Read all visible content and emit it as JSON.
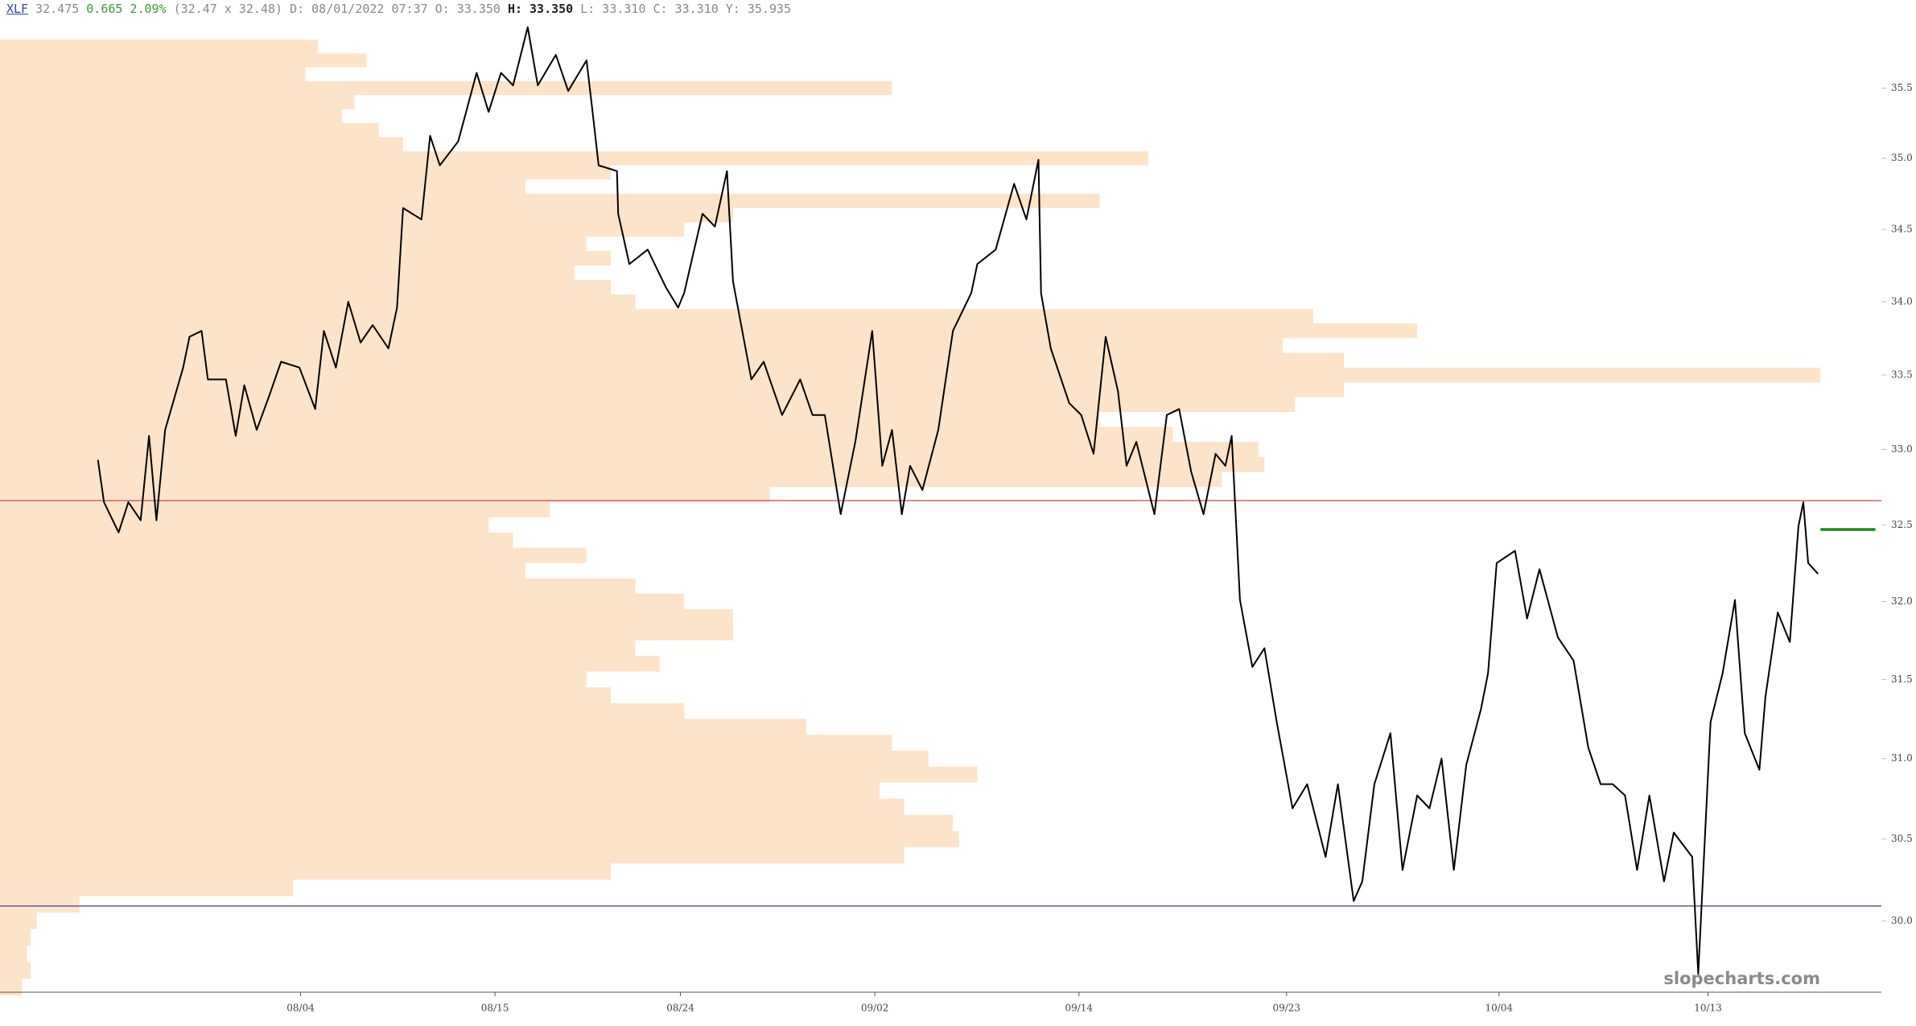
{
  "header": {
    "symbol": "XLF",
    "last": "32.475",
    "change": "0.665",
    "change_pct": "2.09%",
    "bid_ask": "(32.47 x 32.48)",
    "date": "D: 08/01/2022 07:37",
    "open": "O: 33.350",
    "high": "H: 33.350",
    "low": "L: 33.310",
    "close": "C: 33.310",
    "y": "Y: 35.935"
  },
  "watermark": "slopecharts.com",
  "chart_data": {
    "type": "line",
    "log_scale": true,
    "ylim": [
      29.57,
      35.98
    ],
    "yticks": [
      {
        "value": 30,
        "label": "30.0"
      },
      30.5,
      {
        "value": 31,
        "label": "31.0"
      },
      31.5,
      {
        "value": 32,
        "label": "32.0"
      },
      32.5,
      {
        "value": 33,
        "label": "33.0"
      },
      33.5,
      {
        "value": 34,
        "label": "34.0"
      },
      34.5,
      {
        "value": 35,
        "label": "35.0"
      },
      35.5
    ],
    "xlim": [
      -7.47,
      58.06
    ],
    "xticks": [
      {
        "value": 3,
        "label": "08/04"
      },
      {
        "value": 9.77,
        "label": "08/15"
      },
      {
        "value": 16.23,
        "label": "08/24"
      },
      {
        "value": 23.0,
        "label": "09/02"
      },
      {
        "value": 30.11,
        "label": "09/14"
      },
      {
        "value": 37.34,
        "label": "09/23"
      },
      {
        "value": 44.74,
        "label": "10/04"
      },
      {
        "value": 52.02,
        "label": "10/13"
      }
    ],
    "series": [
      {
        "color": "#000000",
        "x": [
          -4.06,
          -3.85,
          -3.34,
          -3.0,
          -2.57,
          -2.28,
          -2.02,
          -1.72,
          -1.09,
          -0.87,
          -0.45,
          -0.23,
          0.4,
          0.74,
          1.04,
          1.47,
          1.89,
          2.32,
          2.96,
          3.51,
          3.81,
          4.23,
          4.66,
          5.09,
          5.51,
          6.06,
          6.36,
          6.57,
          7.21,
          7.51,
          7.85,
          8.49,
          9.13,
          9.55,
          9.98,
          10.4,
          10.91,
          11.26,
          11.89,
          12.32,
          12.96,
          13.17,
          13.38,
          14.02,
          14.06,
          14.45,
          15.09,
          15.72,
          16.15,
          16.36,
          17.0,
          17.43,
          17.85,
          18.06,
          18.7,
          19.13,
          19.77,
          20.4,
          20.83,
          21.26,
          21.81,
          22.32,
          22.91,
          23.26,
          23.6,
          23.94,
          24.23,
          24.66,
          25.21,
          25.72,
          26.36,
          26.57,
          27.21,
          27.85,
          28.28,
          28.7,
          28.79,
          29.13,
          29.77,
          30.19,
          30.62,
          31.04,
          31.47,
          31.77,
          32.11,
          32.74,
          33.17,
          33.6,
          34.02,
          34.45,
          34.87,
          35.21,
          35.43,
          35.72,
          36.15,
          36.57,
          37.0,
          37.55,
          38.06,
          38.7,
          39.13,
          39.68,
          39.98,
          40.4,
          40.96,
          41.38,
          41.89,
          42.32,
          42.74,
          43.17,
          43.6,
          44.11,
          44.36,
          44.66,
          45.3,
          45.72,
          46.15,
          46.79,
          47.34,
          47.85,
          48.28,
          48.7,
          49.13,
          49.55,
          49.98,
          50.49,
          50.83,
          51.47,
          51.68,
          52.11,
          52.53,
          52.96,
          53.3,
          53.81,
          54.02,
          54.45,
          54.87,
          55.17,
          55.34,
          55.51,
          55.85
        ],
        "values": [
          32.93,
          32.65,
          32.45,
          32.65,
          32.53,
          33.09,
          32.53,
          33.13,
          33.55,
          33.76,
          33.8,
          33.47,
          33.47,
          33.09,
          33.43,
          33.13,
          33.35,
          33.59,
          33.55,
          33.27,
          33.8,
          33.55,
          34.0,
          33.72,
          33.84,
          33.68,
          33.96,
          34.65,
          34.57,
          35.16,
          34.95,
          35.12,
          35.61,
          35.33,
          35.61,
          35.52,
          35.94,
          35.52,
          35.74,
          35.48,
          35.7,
          35.33,
          34.95,
          34.91,
          34.61,
          34.26,
          34.36,
          34.1,
          33.96,
          34.06,
          34.61,
          34.52,
          34.91,
          34.14,
          33.47,
          33.59,
          33.23,
          33.47,
          33.23,
          33.23,
          32.57,
          33.05,
          33.8,
          32.89,
          33.13,
          32.57,
          32.89,
          32.73,
          33.13,
          33.8,
          34.06,
          34.26,
          34.36,
          34.82,
          34.57,
          34.99,
          34.06,
          33.68,
          33.31,
          33.23,
          32.97,
          33.76,
          33.39,
          32.89,
          33.05,
          32.57,
          33.23,
          33.27,
          32.85,
          32.57,
          32.97,
          32.89,
          33.09,
          32.01,
          31.58,
          31.7,
          31.23,
          30.69,
          30.84,
          30.39,
          30.84,
          30.12,
          30.24,
          30.84,
          31.16,
          30.31,
          30.77,
          30.69,
          31.0,
          30.31,
          30.96,
          31.31,
          31.54,
          32.25,
          32.33,
          31.89,
          32.21,
          31.77,
          31.62,
          31.07,
          30.84,
          30.84,
          30.77,
          30.31,
          30.77,
          30.24,
          30.54,
          30.39,
          29.68,
          31.23,
          31.54,
          32.01,
          31.16,
          30.93,
          31.39,
          31.93,
          31.74,
          32.49,
          32.65,
          32.25,
          32.18
        ]
      }
    ],
    "profile": {
      "color": "#fde3c8",
      "xlim": [
        0,
        1540
      ],
      "levels": [
        29.6,
        29.7,
        29.8,
        29.9,
        30.0,
        30.1,
        30.2,
        30.3,
        30.4,
        30.5,
        30.6,
        30.7,
        30.8,
        30.9,
        31.0,
        31.1,
        31.2,
        31.3,
        31.4,
        31.5,
        31.6,
        31.7,
        31.8,
        31.9,
        32.0,
        32.1,
        32.2,
        32.3,
        32.4,
        32.5,
        32.6,
        32.7,
        32.8,
        32.9,
        33.0,
        33.1,
        33.2,
        33.3,
        33.4,
        33.5,
        33.6,
        33.7,
        33.8,
        33.9,
        34.0,
        34.1,
        34.2,
        34.3,
        34.4,
        34.5,
        34.6,
        34.7,
        34.8,
        34.9,
        35.0,
        35.1,
        35.2,
        35.3,
        35.4,
        35.5,
        35.6,
        35.7,
        35.8
      ],
      "values": [
        18,
        25,
        22,
        25,
        30,
        65,
        240,
        500,
        740,
        785,
        780,
        740,
        720,
        800,
        760,
        730,
        660,
        560,
        500,
        480,
        540,
        520,
        600,
        600,
        560,
        520,
        430,
        480,
        420,
        400,
        450,
        630,
        1000,
        1035,
        1030,
        960,
        900,
        1060,
        1100,
        1490,
        1100,
        1050,
        1160,
        1075,
        520,
        500,
        470,
        500,
        480,
        560,
        600,
        900,
        430,
        500,
        940,
        330,
        310,
        280,
        290,
        730,
        250,
        300,
        260
      ]
    },
    "hlines": [
      {
        "value": 32.66,
        "color": "#c86464"
      },
      {
        "value": 30.09,
        "color": "#5a5aa0"
      }
    ],
    "last_price_line": {
      "value": 32.47,
      "x": [
        55.94,
        57.85
      ],
      "color": "#1a8a1a"
    }
  }
}
